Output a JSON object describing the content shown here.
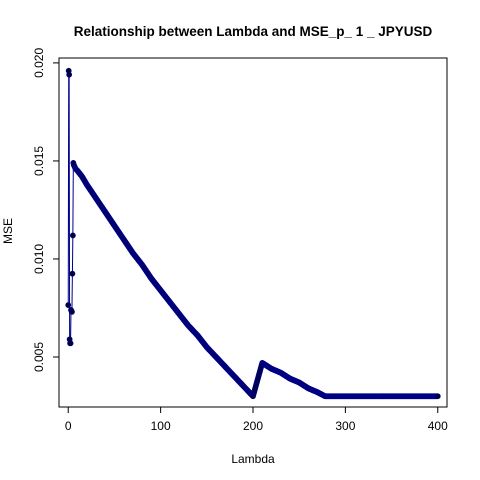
{
  "chart_data": {
    "type": "line",
    "title": "Relationship between Lambda and MSE_p_ 1 _ JPYUSD",
    "xlabel": "Lambda",
    "ylabel": "MSE",
    "xlim": [
      -10,
      410
    ],
    "ylim": [
      0.00245,
      0.02025
    ],
    "x_ticks": [
      0,
      100,
      200,
      300,
      400
    ],
    "y_ticks": [
      0.005,
      0.01,
      0.015,
      0.02
    ],
    "x_tick_labels": [
      "0",
      "100",
      "200",
      "300",
      "400"
    ],
    "y_tick_labels": [
      "0.005",
      "0.010",
      "0.015",
      "0.020"
    ],
    "line_color": "#00008b",
    "point_color": "#000033",
    "grid": false,
    "legend": "none",
    "series": [
      {
        "x": [
          0,
          0.5,
          1,
          1.5,
          2,
          2.5,
          3,
          4,
          5,
          5.5,
          6,
          8,
          10,
          15,
          20,
          30,
          40,
          50,
          60,
          70,
          80,
          90,
          100,
          110,
          120,
          130,
          140,
          150,
          160,
          170,
          180,
          190,
          200,
          210,
          220,
          230,
          240,
          250,
          260,
          270,
          278,
          290,
          300,
          320,
          340,
          360,
          380,
          400
        ],
        "y": [
          0.00765,
          0.0196,
          0.0194,
          0.0059,
          0.0057,
          0.0057,
          0.0074,
          0.0073,
          0.0112,
          0.0149,
          0.0148,
          0.0146,
          0.0145,
          0.0142,
          0.0138,
          0.0131,
          0.0124,
          0.0117,
          0.011,
          0.0103,
          0.0097,
          0.009,
          0.0084,
          0.0078,
          0.0072,
          0.0066,
          0.0061,
          0.0055,
          0.005,
          0.0045,
          0.004,
          0.0035,
          0.003,
          0.0047,
          0.0044,
          0.0042,
          0.0039,
          0.0037,
          0.0034,
          0.0032,
          0.003,
          0.003,
          0.003,
          0.003,
          0.003,
          0.003,
          0.003,
          0.003
        ]
      }
    ]
  }
}
